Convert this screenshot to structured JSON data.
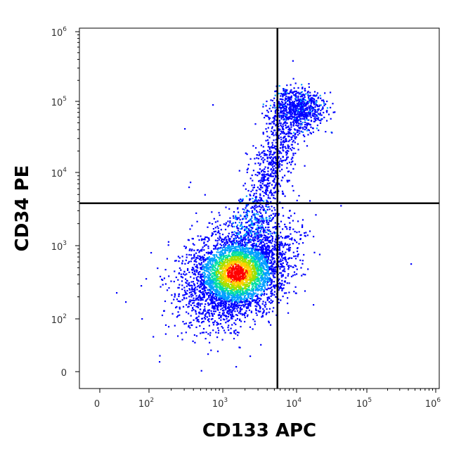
{
  "chart_data": {
    "type": "scatter",
    "style": "flow-cytometry-density-dot-plot",
    "xlabel": "CD133 APC",
    "ylabel": "CD34 PE",
    "xscale": "biexponential",
    "yscale": "biexponential",
    "xlim": [
      -50,
      1000000
    ],
    "ylim": [
      -20,
      1000000
    ],
    "xticks": [
      {
        "value": 0,
        "base": "0",
        "exp": ""
      },
      {
        "value": 100,
        "base": "10",
        "exp": "2"
      },
      {
        "value": 1000,
        "base": "10",
        "exp": "3"
      },
      {
        "value": 10000,
        "base": "10",
        "exp": "4"
      },
      {
        "value": 100000,
        "base": "10",
        "exp": "5"
      },
      {
        "value": 1000000,
        "base": "10",
        "exp": "6"
      }
    ],
    "yticks": [
      {
        "value": 0,
        "base": "0",
        "exp": ""
      },
      {
        "value": 100,
        "base": "10",
        "exp": "2"
      },
      {
        "value": 1000,
        "base": "10",
        "exp": "3"
      },
      {
        "value": 10000,
        "base": "10",
        "exp": "4"
      },
      {
        "value": 100000,
        "base": "10",
        "exp": "5"
      },
      {
        "value": 1000000,
        "base": "10",
        "exp": "6"
      }
    ],
    "quadrant_gate": {
      "x": 5500,
      "y": 3800
    },
    "populations": [
      {
        "name": "CD133- CD34- main population",
        "center": [
          1500,
          430
        ],
        "density": "high"
      },
      {
        "name": "CD133+ CD34+ population",
        "center": [
          11000,
          80000
        ],
        "density": "medium"
      },
      {
        "name": "CD34+ transitional events",
        "center": [
          2500,
          15000
        ],
        "density": "low"
      }
    ],
    "density_colors": [
      "#0000ff",
      "#00a0ff",
      "#00e0a0",
      "#a0e000",
      "#ffd000",
      "#ff0000"
    ],
    "grid": false,
    "legend": "none"
  }
}
